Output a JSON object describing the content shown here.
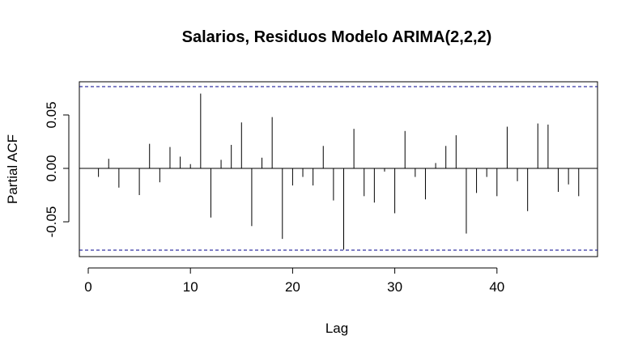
{
  "chart_data": {
    "type": "bar",
    "title": "Salarios, Residuos Modelo ARIMA(2,2,2)",
    "xlabel": "Lag",
    "ylabel": "Partial ACF",
    "xlim": [
      1,
      48
    ],
    "ylim": [
      -0.082,
      0.082
    ],
    "x_ticks": [
      0,
      10,
      20,
      30,
      40
    ],
    "y_ticks": [
      -0.05,
      0.0,
      0.05
    ],
    "y_tick_labels": [
      "-0.05",
      "0.00",
      "0.05"
    ],
    "confidence_bounds": [
      -0.0765,
      0.0765
    ],
    "grid": false,
    "colors": {
      "bars": "#000000",
      "bounds": "#00008B",
      "axes": "#000000"
    },
    "lags": [
      1,
      2,
      3,
      4,
      5,
      6,
      7,
      8,
      9,
      10,
      11,
      12,
      13,
      14,
      15,
      16,
      17,
      18,
      19,
      20,
      21,
      22,
      23,
      24,
      25,
      26,
      27,
      28,
      29,
      30,
      31,
      32,
      33,
      34,
      35,
      36,
      37,
      38,
      39,
      40,
      41,
      42,
      43,
      44,
      45,
      46,
      47,
      48
    ],
    "values": [
      -0.008,
      0.009,
      -0.018,
      0.0,
      -0.025,
      0.023,
      -0.013,
      0.02,
      0.011,
      0.004,
      0.07,
      -0.046,
      0.008,
      0.022,
      0.043,
      -0.054,
      0.01,
      0.048,
      -0.066,
      -0.016,
      -0.008,
      -0.016,
      0.021,
      -0.03,
      -0.076,
      0.037,
      -0.026,
      -0.032,
      -0.003,
      -0.042,
      0.035,
      -0.008,
      -0.029,
      0.005,
      0.021,
      0.031,
      -0.061,
      -0.023,
      -0.008,
      -0.026,
      0.039,
      -0.012,
      -0.04,
      0.042,
      0.041,
      -0.022,
      -0.015,
      -0.026
    ]
  }
}
